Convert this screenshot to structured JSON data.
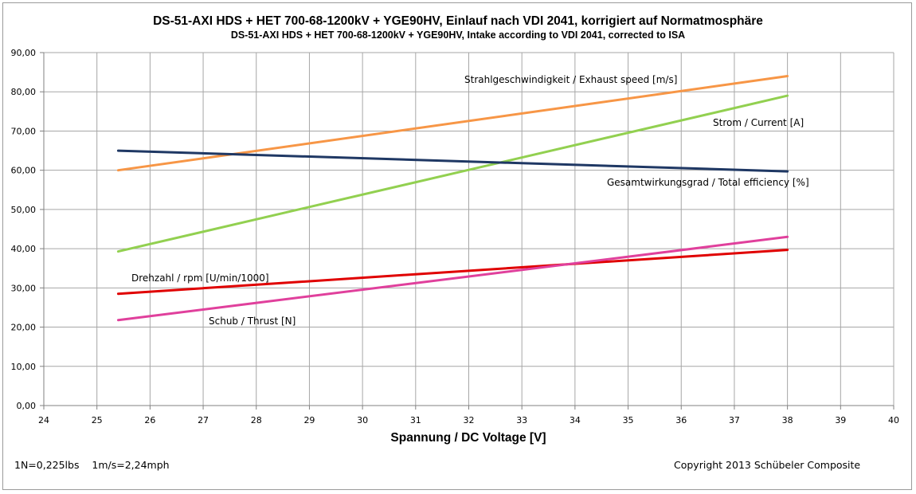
{
  "chart_data": {
    "type": "line",
    "title": "DS-51-AXI HDS + HET 700-68-1200kV + YGE90HV, Einlauf nach VDI 2041, korrigiert auf Normatmosphäre",
    "subtitle": "DS-51-AXI HDS + HET 700-68-1200kV + YGE90HV, Intake according to VDI 2041, corrected to ISA",
    "xlabel": "Spannung / DC Voltage [V]",
    "ylabel": "",
    "xlim": [
      24,
      40
    ],
    "ylim": [
      0,
      90
    ],
    "x_ticks": [
      "24",
      "25",
      "26",
      "27",
      "28",
      "29",
      "30",
      "31",
      "32",
      "33",
      "34",
      "35",
      "36",
      "37",
      "38",
      "39",
      "40"
    ],
    "y_ticks": [
      "0,00",
      "10,00",
      "20,00",
      "30,00",
      "40,00",
      "50,00",
      "60,00",
      "70,00",
      "80,00",
      "90,00"
    ],
    "grid": true,
    "legend": "none",
    "series": [
      {
        "name": "Strahlgeschwindigkeit / Exhaust speed [m/s]",
        "color": "#f79646",
        "x": [
          25.4,
          38
        ],
        "y": [
          60.0,
          84.0
        ]
      },
      {
        "name": "Strom / Current [A]",
        "color": "#92d050",
        "x": [
          25.4,
          38
        ],
        "y": [
          39.3,
          79.0
        ]
      },
      {
        "name": "Gesamtwirkungsgrad / Total efficiency [%]",
        "color": "#1f3864",
        "x": [
          25.4,
          38
        ],
        "y": [
          65.0,
          59.7
        ]
      },
      {
        "name": "Drehzahl / rpm [U/min/1000]",
        "color": "#e00000",
        "x": [
          25.4,
          38
        ],
        "y": [
          28.5,
          39.7
        ]
      },
      {
        "name": "Schub / Thrust [N]",
        "color": "#e0409c",
        "x": [
          25.4,
          38
        ],
        "y": [
          21.8,
          43.0
        ]
      }
    ]
  },
  "notes": {
    "units": "1N=0,225lbs    1m/s=2,24mph",
    "copyright": "Copyright 2013 Schübeler Composite"
  }
}
